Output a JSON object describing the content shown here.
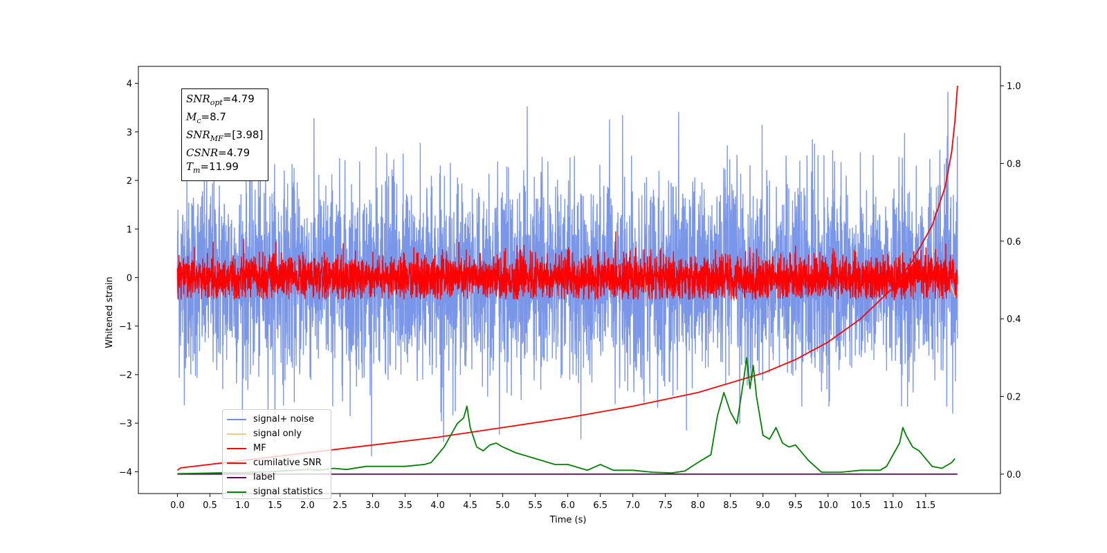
{
  "chart_data": {
    "type": "line",
    "title": "",
    "xlabel": "Time (s)",
    "ylabel": "Whitened strain",
    "xlim": [
      -0.6,
      12.65
    ],
    "ylim": [
      -4.45,
      4.35
    ],
    "y2lim": [
      -0.05,
      1.05
    ],
    "x_ticks": [
      "0.0",
      "0.5",
      "1.0",
      "1.5",
      "2.0",
      "2.5",
      "3.0",
      "3.5",
      "4.0",
      "4.5",
      "5.0",
      "5.5",
      "6.0",
      "6.5",
      "7.0",
      "7.5",
      "8.0",
      "8.5",
      "9.0",
      "9.5",
      "10.0",
      "10.5",
      "11.0",
      "11.5"
    ],
    "y_ticks": [
      "−4",
      "−3",
      "−2",
      "−1",
      "0",
      "1",
      "2",
      "3",
      "4"
    ],
    "y2_ticks": [
      "0.0",
      "0.2",
      "0.4",
      "0.6",
      "0.8",
      "1.0"
    ],
    "grid": false,
    "legend_position": "lower-left",
    "annotation": {
      "snr_opt": "4.79",
      "mc": "8.7",
      "snr_mf": "[3.98]",
      "csnr": "4.79",
      "tm": "11.99"
    },
    "series": [
      {
        "name": "signal+ noise",
        "color": "#6f8de6",
        "axis": "left",
        "kind": "noise",
        "t_range": [
          0,
          11.99
        ],
        "mean": 0.0,
        "std": 1.0,
        "min": -3.8,
        "max": 3.95
      },
      {
        "name": "signal only",
        "color": "#f5c97a",
        "axis": "left",
        "kind": "line",
        "x": [
          11.8,
          11.9,
          11.95,
          11.99
        ],
        "y": [
          -0.1,
          -0.2,
          -0.4,
          -0.3
        ]
      },
      {
        "name": "MF",
        "color": "#ff0000",
        "axis": "left",
        "kind": "noise",
        "t_range": [
          0,
          11.99
        ],
        "mean": 0.0,
        "std": 0.22,
        "min": -0.45,
        "max": 0.97
      },
      {
        "name": "cumilative SNR",
        "color": "#ff0000",
        "axis": "right",
        "kind": "line",
        "x": [
          0.0,
          0.05,
          1.0,
          2.0,
          3.0,
          4.0,
          5.0,
          6.0,
          7.0,
          8.0,
          9.0,
          9.5,
          10.0,
          10.5,
          11.0,
          11.3,
          11.6,
          11.8,
          11.9,
          11.95,
          11.99
        ],
        "y": [
          0.01,
          0.016,
          0.035,
          0.055,
          0.075,
          0.095,
          0.12,
          0.145,
          0.175,
          0.21,
          0.26,
          0.295,
          0.34,
          0.4,
          0.48,
          0.55,
          0.64,
          0.74,
          0.83,
          0.91,
          1.0
        ]
      },
      {
        "name": "label",
        "color": "#5c0a5c",
        "axis": "right",
        "kind": "line",
        "x": [
          0.0,
          11.99
        ],
        "y": [
          0.0,
          0.0
        ]
      },
      {
        "name": "signal statistics",
        "color": "#008000",
        "axis": "right",
        "kind": "line",
        "x": [
          0.0,
          0.3,
          0.6,
          1.0,
          1.4,
          1.8,
          2.0,
          2.2,
          2.4,
          2.6,
          2.9,
          3.2,
          3.5,
          3.8,
          3.9,
          4.0,
          4.1,
          4.2,
          4.3,
          4.4,
          4.45,
          4.5,
          4.6,
          4.7,
          4.8,
          4.9,
          5.0,
          5.2,
          5.5,
          5.8,
          6.0,
          6.3,
          6.5,
          6.7,
          7.0,
          7.3,
          7.6,
          7.8,
          8.0,
          8.2,
          8.3,
          8.4,
          8.5,
          8.6,
          8.7,
          8.75,
          8.8,
          8.85,
          8.9,
          8.95,
          9.0,
          9.1,
          9.2,
          9.3,
          9.4,
          9.5,
          9.7,
          9.9,
          10.2,
          10.5,
          10.8,
          10.9,
          11.0,
          11.1,
          11.15,
          11.2,
          11.3,
          11.4,
          11.5,
          11.6,
          11.75,
          11.9,
          11.95
        ],
        "y": [
          0.001,
          0.002,
          0.003,
          0.004,
          0.006,
          0.01,
          0.012,
          0.01,
          0.015,
          0.012,
          0.02,
          0.02,
          0.02,
          0.025,
          0.03,
          0.05,
          0.07,
          0.1,
          0.13,
          0.145,
          0.175,
          0.12,
          0.07,
          0.06,
          0.075,
          0.08,
          0.07,
          0.055,
          0.04,
          0.025,
          0.025,
          0.01,
          0.025,
          0.01,
          0.01,
          0.005,
          0.003,
          0.008,
          0.03,
          0.05,
          0.15,
          0.21,
          0.16,
          0.13,
          0.24,
          0.3,
          0.22,
          0.28,
          0.2,
          0.15,
          0.1,
          0.09,
          0.12,
          0.08,
          0.07,
          0.075,
          0.035,
          0.005,
          0.005,
          0.01,
          0.01,
          0.02,
          0.05,
          0.08,
          0.12,
          0.1,
          0.07,
          0.06,
          0.04,
          0.02,
          0.015,
          0.03,
          0.04
        ]
      }
    ]
  }
}
